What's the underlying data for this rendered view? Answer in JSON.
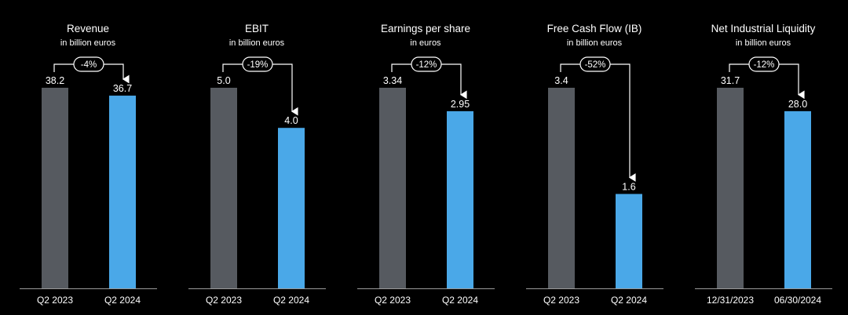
{
  "theme": {
    "background": "#000000",
    "text": "#ffffff",
    "bar_previous": "#565a60",
    "bar_current": "#4aa8e8",
    "baseline": "#9a9a9a"
  },
  "chart_data": [
    {
      "type": "bar",
      "title": "Revenue",
      "subtitle": "in billion euros",
      "categories": [
        "Q2 2023",
        "Q2 2024"
      ],
      "values": [
        38.2,
        36.7
      ],
      "value_labels": [
        "38.2",
        "36.7"
      ],
      "change": "-4%",
      "ylim": [
        0,
        100
      ]
    },
    {
      "type": "bar",
      "title": "EBIT",
      "subtitle": "in billion euros",
      "categories": [
        "Q2 2023",
        "Q2 2024"
      ],
      "values": [
        5.0,
        4.0
      ],
      "value_labels": [
        "5.0",
        "4.0"
      ],
      "change": "-19%",
      "ylim": [
        0,
        100
      ]
    },
    {
      "type": "bar",
      "title": "Earnings per share",
      "subtitle": "in euros",
      "categories": [
        "Q2 2023",
        "Q2 2024"
      ],
      "values": [
        3.34,
        2.95
      ],
      "value_labels": [
        "3.34",
        "2.95"
      ],
      "change": "-12%",
      "ylim": [
        0,
        100
      ]
    },
    {
      "type": "bar",
      "title": "Free Cash Flow (IB)",
      "subtitle": "in billion euros",
      "categories": [
        "Q2 2023",
        "Q2 2024"
      ],
      "values": [
        3.4,
        1.6
      ],
      "value_labels": [
        "3.4",
        "1.6"
      ],
      "change": "-52%",
      "ylim": [
        0,
        100
      ]
    },
    {
      "type": "bar",
      "title": "Net Industrial Liquidity",
      "subtitle": "in billion euros",
      "categories": [
        "12/31/2023",
        "06/30/2024"
      ],
      "values": [
        31.7,
        28.0
      ],
      "value_labels": [
        "31.7",
        "28.0"
      ],
      "change": "-12%",
      "ylim": [
        0,
        100
      ]
    }
  ]
}
